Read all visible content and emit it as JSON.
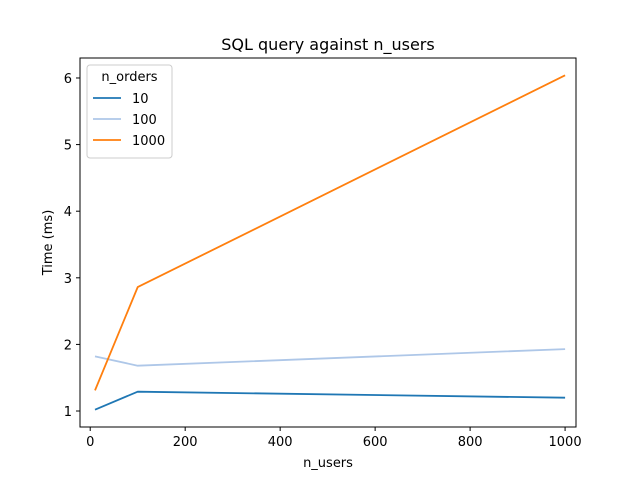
{
  "chart_data": {
    "type": "line",
    "title": "SQL query against n_users",
    "xlabel": "n_users",
    "ylabel": "Time (ms)",
    "x": [
      10,
      100,
      1000
    ],
    "xlim": [
      -21.5,
      1023
    ],
    "ylim": [
      0.76,
      6.3
    ],
    "xticks": [
      0,
      200,
      400,
      600,
      800,
      1000
    ],
    "yticks": [
      1,
      2,
      3,
      4,
      5,
      6
    ],
    "grid": false,
    "legend": {
      "title": "n_orders",
      "placement": "top-left"
    },
    "series": [
      {
        "name": "10",
        "color": "#1f77b4",
        "values": [
          1.02,
          1.29,
          1.2
        ]
      },
      {
        "name": "100",
        "color": "#aec7e8",
        "values": [
          1.82,
          1.68,
          1.93
        ]
      },
      {
        "name": "1000",
        "color": "#ff7f0e",
        "values": [
          1.31,
          2.86,
          6.04
        ]
      }
    ]
  }
}
